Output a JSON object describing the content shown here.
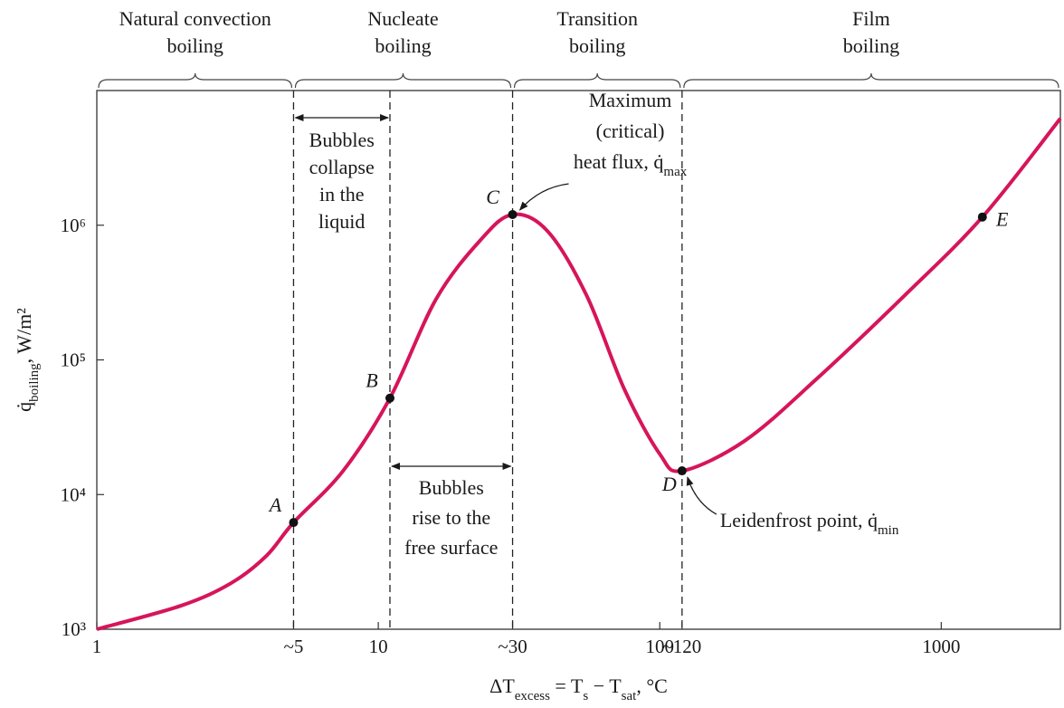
{
  "chart_data": {
    "type": "line",
    "xscale": "log",
    "yscale": "log",
    "xlim": [
      1,
      2650
    ],
    "ylim": [
      1000,
      10000000
    ],
    "xticks": [
      1,
      {
        "value": 5,
        "label": "~5"
      },
      10,
      {
        "value": 30,
        "label": "~30"
      },
      100,
      {
        "value": 120,
        "label": "~120"
      },
      1000
    ],
    "yticks": [
      {
        "value": 1000,
        "label": "10³"
      },
      {
        "value": 10000,
        "label": "10⁴"
      },
      {
        "value": 100000,
        "label": "10⁵"
      },
      {
        "value": 1000000,
        "label": "10⁶"
      }
    ],
    "x_label": [
      {
        "text": "ΔT"
      },
      {
        "text": "excess",
        "sub": true
      },
      {
        "text": " = T"
      },
      {
        "text": "s",
        "sub": true
      },
      {
        "text": " − T"
      },
      {
        "text": "sat",
        "sub": true
      },
      {
        "text": ", °C"
      }
    ],
    "y_label": [
      {
        "text": "q̇"
      },
      {
        "text": "boiling",
        "sub": true
      },
      {
        "text": ", W/m²"
      }
    ],
    "regions": [
      {
        "label": [
          "Natural convection",
          "boiling"
        ],
        "from": 1,
        "to": 5
      },
      {
        "label": [
          "Nucleate",
          "boiling"
        ],
        "from": 5,
        "to": 30
      },
      {
        "label": [
          "Transition",
          "boiling"
        ],
        "from": 30,
        "to": 120
      },
      {
        "label": [
          "Film",
          "boiling"
        ],
        "from": 120,
        "to": 2650
      }
    ],
    "boundaries": [
      5,
      11,
      30,
      120
    ],
    "x": [
      1,
      2,
      3,
      4,
      5,
      7.5,
      11,
      16,
      23,
      30,
      40,
      55,
      75,
      100,
      120,
      200,
      355,
      740,
      1400,
      2650
    ],
    "values": [
      1000,
      1500,
      2200,
      3500,
      6200,
      15000,
      52000,
      280000,
      770000,
      1200000,
      900000,
      300000,
      60000,
      20000,
      15000,
      25000,
      70000,
      300000,
      1150000,
      6200000
    ],
    "color": "#d6155b",
    "points": [
      {
        "label": "A",
        "x": 5,
        "y": 6200
      },
      {
        "label": "B",
        "x": 11,
        "y": 52000
      },
      {
        "label": "C",
        "x": 30,
        "y": 1200000
      },
      {
        "label": "D",
        "x": 120,
        "y": 15000
      },
      {
        "label": "E",
        "x": 1400,
        "y": 1150000
      }
    ],
    "annotations": [
      {
        "lines": [
          "Bubbles",
          "collapse",
          "in the",
          "liquid"
        ]
      },
      {
        "lines": [
          "Bubbles",
          "rise to the",
          "free surface"
        ]
      },
      {
        "lines": [
          "Maximum",
          "(critical)",
          [
            {
              "text": "heat flux, q̇"
            },
            {
              "text": "max",
              "sub": true
            }
          ]
        ]
      },
      {
        "lines": [
          [
            {
              "text": "Leidenfrost point, q̇"
            },
            {
              "text": "min",
              "sub": true
            }
          ]
        ]
      }
    ]
  }
}
